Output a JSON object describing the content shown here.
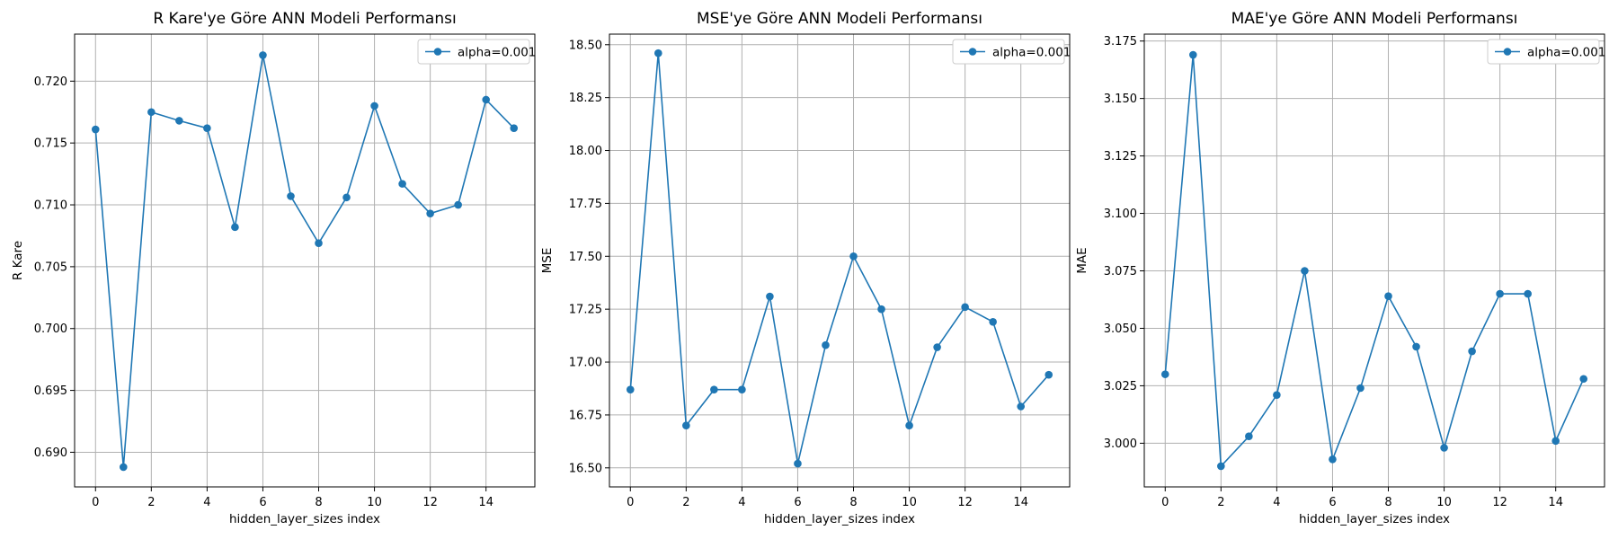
{
  "colors": {
    "series": "#1f77b4",
    "grid": "#b0b0b0"
  },
  "chart_data": [
    {
      "type": "line",
      "title": "R Kare'ye Göre ANN Modeli Performansı",
      "xlabel": "hidden_layer_sizes index",
      "ylabel": "R Kare",
      "xlim": [
        -0.75,
        15.75
      ],
      "ylim": [
        0.6872,
        0.7238
      ],
      "xticks": [
        0,
        2,
        4,
        6,
        8,
        10,
        12,
        14
      ],
      "xtick_labels": [
        "0",
        "2",
        "4",
        "6",
        "8",
        "10",
        "12",
        "14"
      ],
      "yticks": [
        0.69,
        0.695,
        0.7,
        0.705,
        0.71,
        0.715,
        0.72
      ],
      "ytick_labels": [
        "0.690",
        "0.695",
        "0.700",
        "0.705",
        "0.710",
        "0.715",
        "0.720"
      ],
      "grid": true,
      "legend": "upper right",
      "series": [
        {
          "name": "alpha=0.001",
          "x": [
            0,
            1,
            2,
            3,
            4,
            5,
            6,
            7,
            8,
            9,
            10,
            11,
            12,
            13,
            14,
            15
          ],
          "values": [
            0.7161,
            0.6888,
            0.7175,
            0.7168,
            0.7162,
            0.7082,
            0.7221,
            0.7107,
            0.7069,
            0.7106,
            0.718,
            0.7117,
            0.7093,
            0.71,
            0.7185,
            0.7162
          ]
        }
      ]
    },
    {
      "type": "line",
      "title": "MSE'ye Göre ANN Modeli Performansı",
      "xlabel": "hidden_layer_sizes index",
      "ylabel": "MSE",
      "xlim": [
        -0.75,
        15.75
      ],
      "ylim": [
        16.41,
        18.55
      ],
      "xticks": [
        0,
        2,
        4,
        6,
        8,
        10,
        12,
        14
      ],
      "xtick_labels": [
        "0",
        "2",
        "4",
        "6",
        "8",
        "10",
        "12",
        "14"
      ],
      "yticks": [
        16.5,
        16.75,
        17.0,
        17.25,
        17.5,
        17.75,
        18.0,
        18.25,
        18.5
      ],
      "ytick_labels": [
        "16.50",
        "16.75",
        "17.00",
        "17.25",
        "17.50",
        "17.75",
        "18.00",
        "18.25",
        "18.50"
      ],
      "grid": true,
      "legend": "upper right",
      "series": [
        {
          "name": "alpha=0.001",
          "x": [
            0,
            1,
            2,
            3,
            4,
            5,
            6,
            7,
            8,
            9,
            10,
            11,
            12,
            13,
            14,
            15
          ],
          "values": [
            16.87,
            18.46,
            16.7,
            16.87,
            16.87,
            17.31,
            16.52,
            17.08,
            17.5,
            17.25,
            16.7,
            17.07,
            17.26,
            17.19,
            16.79,
            16.94
          ]
        }
      ]
    },
    {
      "type": "line",
      "title": "MAE'ye Göre ANN Modeli Performansı",
      "xlabel": "hidden_layer_sizes index",
      "ylabel": "MAE",
      "xlim": [
        -0.75,
        15.75
      ],
      "ylim": [
        2.981,
        3.178
      ],
      "xticks": [
        0,
        2,
        4,
        6,
        8,
        10,
        12,
        14
      ],
      "xtick_labels": [
        "0",
        "2",
        "4",
        "6",
        "8",
        "10",
        "12",
        "14"
      ],
      "yticks": [
        3.0,
        3.025,
        3.05,
        3.075,
        3.1,
        3.125,
        3.15,
        3.175
      ],
      "ytick_labels": [
        "3.000",
        "3.025",
        "3.050",
        "3.075",
        "3.100",
        "3.125",
        "3.150",
        "3.175"
      ],
      "grid": true,
      "legend": "upper right",
      "series": [
        {
          "name": "alpha=0.001",
          "x": [
            0,
            1,
            2,
            3,
            4,
            5,
            6,
            7,
            8,
            9,
            10,
            11,
            12,
            13,
            14,
            15
          ],
          "values": [
            3.03,
            3.169,
            2.99,
            3.003,
            3.021,
            3.075,
            2.993,
            3.024,
            3.064,
            3.042,
            2.998,
            3.04,
            3.065,
            3.065,
            3.001,
            3.028
          ]
        }
      ]
    }
  ]
}
